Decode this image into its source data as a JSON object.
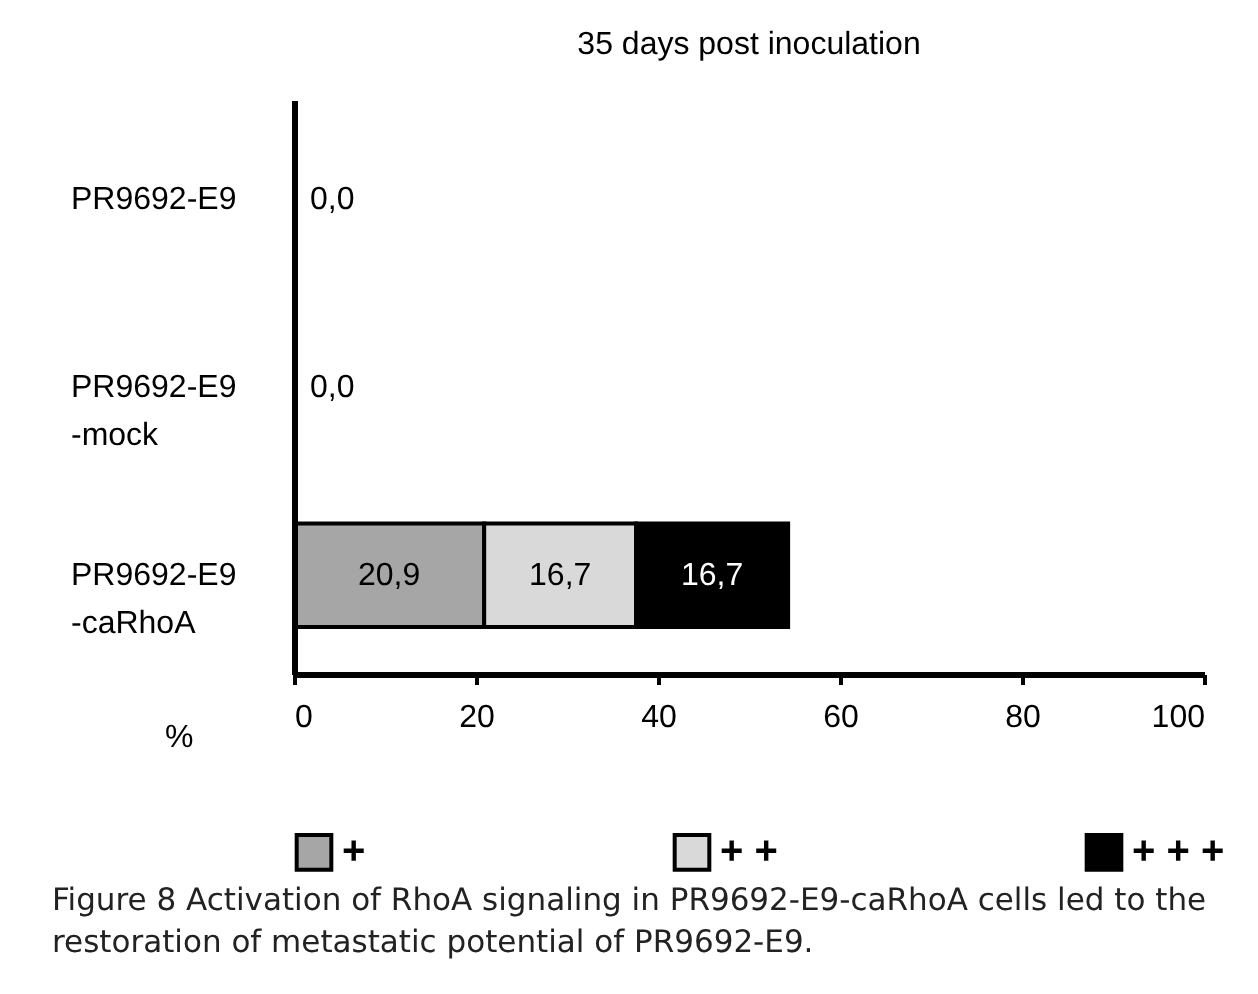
{
  "chart_data": {
    "type": "bar",
    "orientation": "horizontal",
    "stacked": true,
    "title": "35 days post inoculation",
    "xlabel": "%",
    "categories": [
      "PR9692-E9",
      "PR9692-E9\n-mock",
      "PR9692-E9\n-caRhoA"
    ],
    "series": [
      {
        "name": "+",
        "color": "#a6a6a6",
        "values": [
          0,
          0,
          20.9
        ],
        "value_labels": [
          "0,0",
          "0,0",
          "20,9"
        ]
      },
      {
        "name": "+ +",
        "color": "#d9d9d9",
        "values": [
          0,
          0,
          16.7
        ],
        "value_labels": [
          null,
          null,
          "16,7"
        ]
      },
      {
        "name": "+ + +",
        "color": "#000000",
        "values": [
          0,
          0,
          16.7
        ],
        "value_labels": [
          null,
          null,
          "16,7"
        ]
      }
    ],
    "xlim": [
      0,
      100
    ],
    "xticks": [
      0,
      20,
      40,
      60,
      80,
      100
    ],
    "grid": false,
    "legend": "bottom",
    "annotations": [
      "Figure 8 Activation of RhoA signaling in PR9692-E9-caRhoA cells led to the restoration of metastatic potential of PR9692-E9."
    ]
  }
}
